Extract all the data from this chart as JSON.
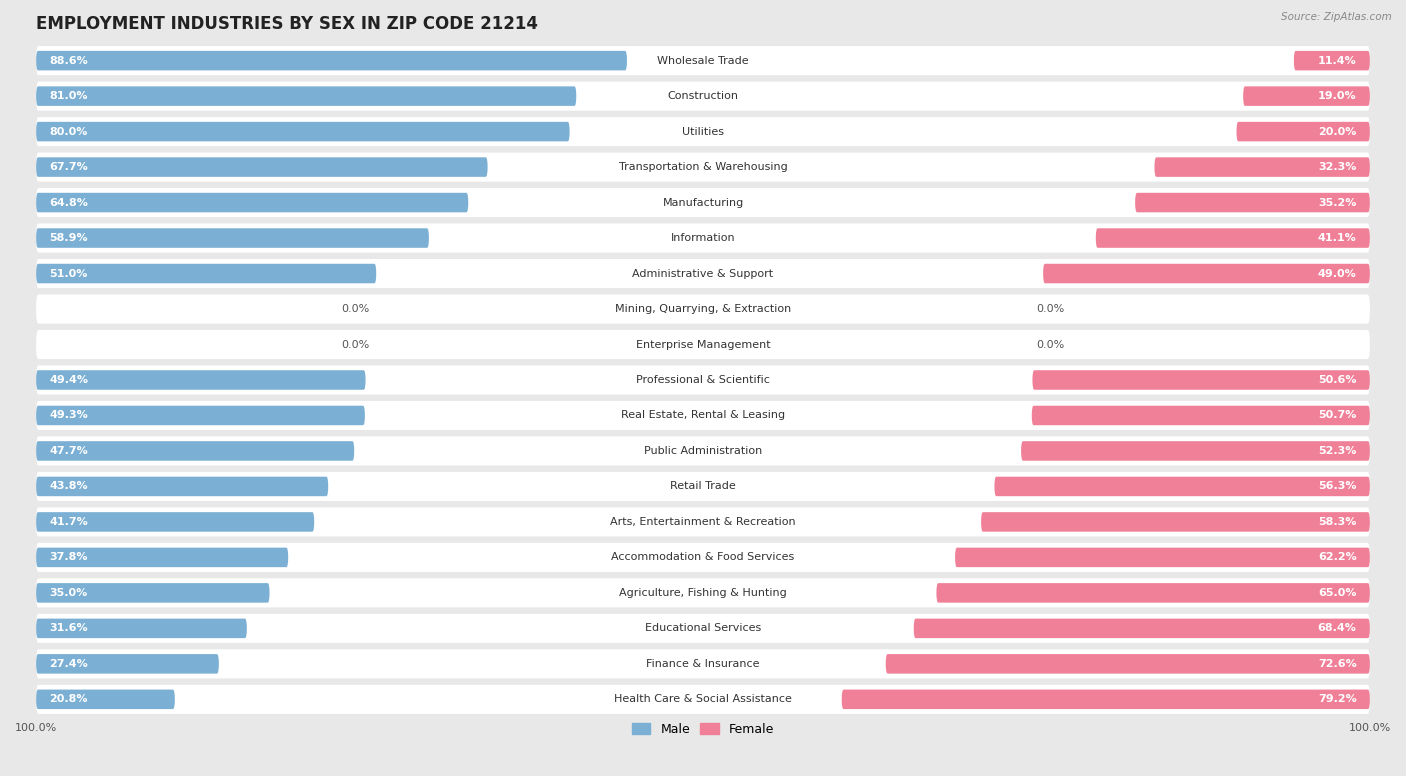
{
  "title": "EMPLOYMENT INDUSTRIES BY SEX IN ZIP CODE 21214",
  "source": "Source: ZipAtlas.com",
  "categories": [
    "Wholesale Trade",
    "Construction",
    "Utilities",
    "Transportation & Warehousing",
    "Manufacturing",
    "Information",
    "Administrative & Support",
    "Mining, Quarrying, & Extraction",
    "Enterprise Management",
    "Professional & Scientific",
    "Real Estate, Rental & Leasing",
    "Public Administration",
    "Retail Trade",
    "Arts, Entertainment & Recreation",
    "Accommodation & Food Services",
    "Agriculture, Fishing & Hunting",
    "Educational Services",
    "Finance & Insurance",
    "Health Care & Social Assistance"
  ],
  "male": [
    88.6,
    81.0,
    80.0,
    67.7,
    64.8,
    58.9,
    51.0,
    0.0,
    0.0,
    49.4,
    49.3,
    47.7,
    43.8,
    41.7,
    37.8,
    35.0,
    31.6,
    27.4,
    20.8
  ],
  "female": [
    11.4,
    19.0,
    20.0,
    32.3,
    35.2,
    41.1,
    49.0,
    0.0,
    0.0,
    50.6,
    50.7,
    52.3,
    56.3,
    58.3,
    62.2,
    65.0,
    68.4,
    72.6,
    79.2
  ],
  "male_color": "#7bafd4",
  "female_color": "#f08098",
  "male_color_light": "#b8d4e8",
  "female_color_light": "#f4b8c8",
  "background_color": "#e8e8e8",
  "row_bg_color": "#ffffff",
  "title_fontsize": 12,
  "label_fontsize": 8,
  "bar_label_fontsize": 8,
  "axis_label_fontsize": 8
}
